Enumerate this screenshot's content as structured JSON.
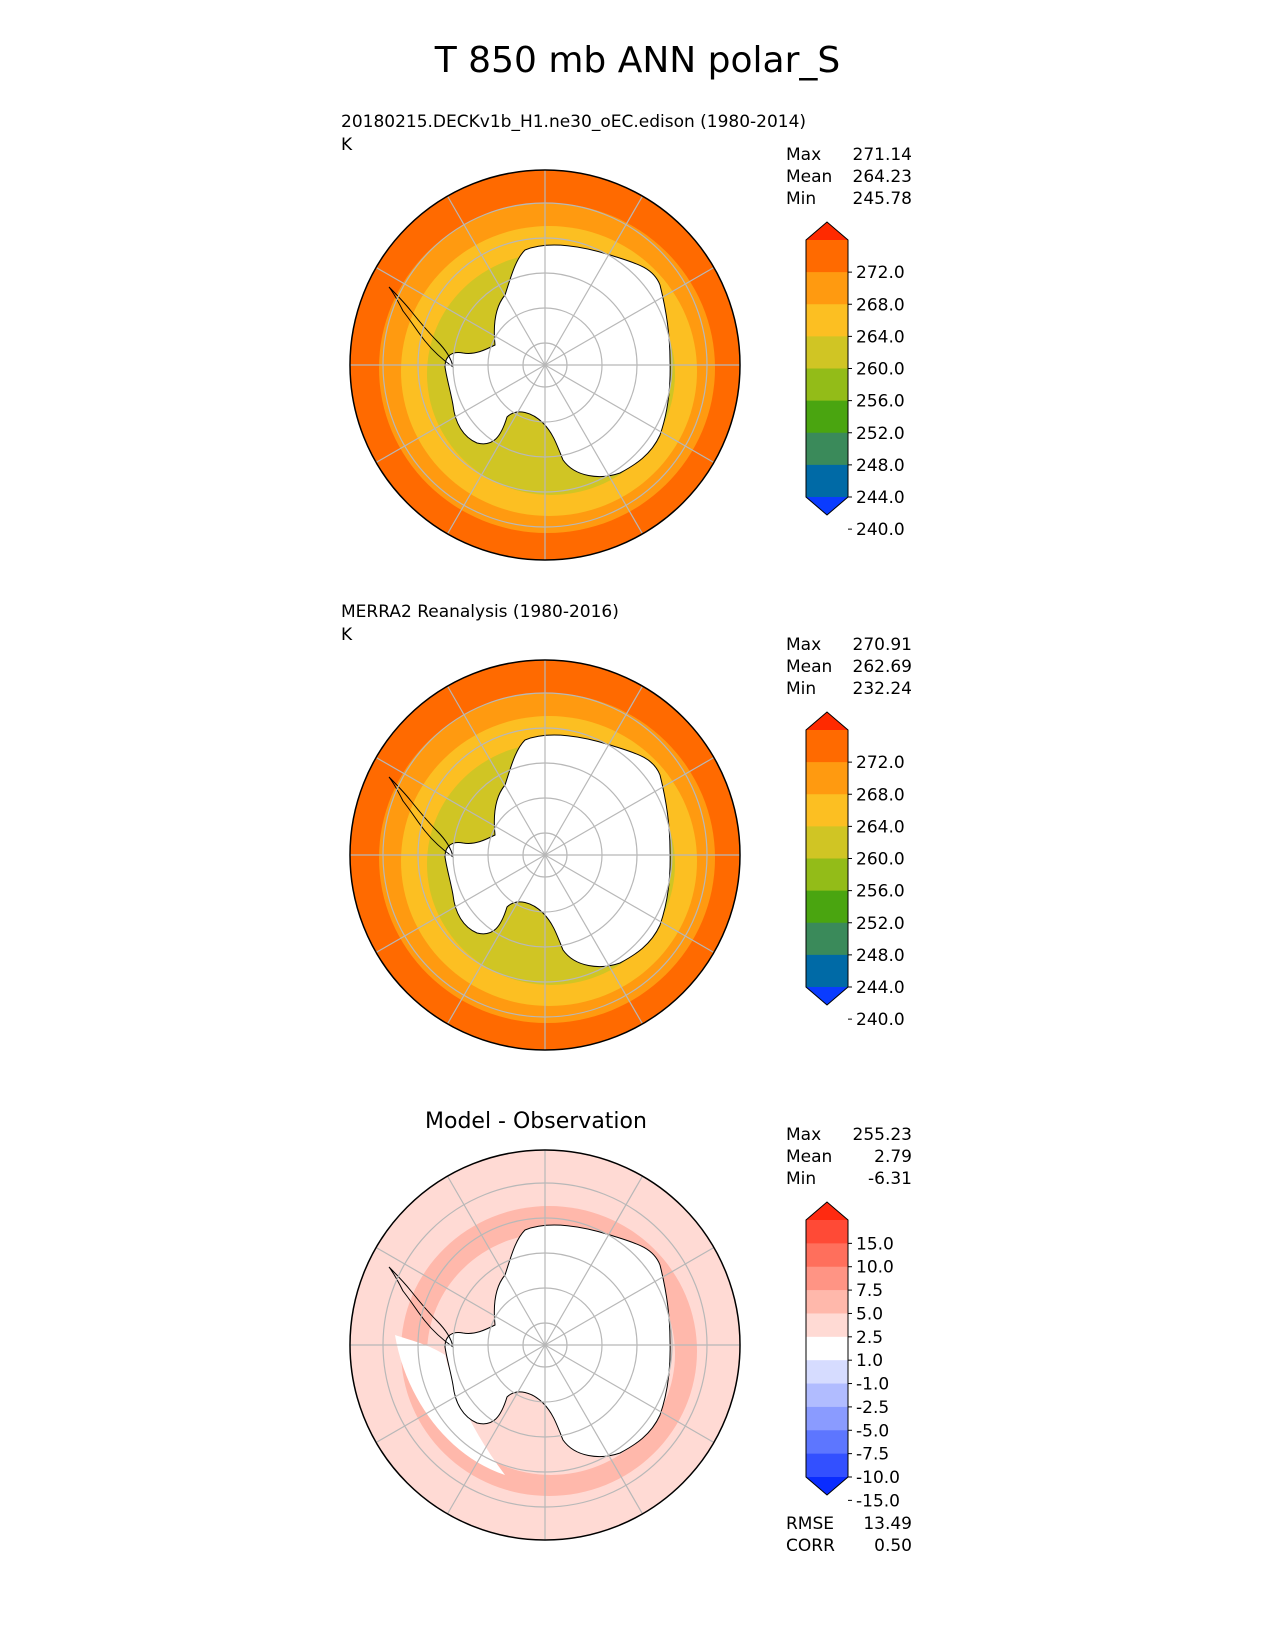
{
  "figure": {
    "title": "T 850 mb ANN polar_S"
  },
  "chart_data": [
    {
      "type": "heatmap",
      "projection": "south polar stereographic",
      "title": "20180215.DECKv1b_H1.ne30_oEC.edison (1980-2014)",
      "units": "K",
      "stats": {
        "Max": "271.14",
        "Mean": "264.23",
        "Min": "245.78"
      },
      "colorbar": {
        "extend": "both",
        "ticks": [
          "272.0",
          "268.0",
          "264.0",
          "260.0",
          "256.0",
          "252.0",
          "248.0",
          "244.0",
          "240.0"
        ],
        "colors": [
          "#ff2a00",
          "#ff6a00",
          "#ff9a10",
          "#fcbf22",
          "#d0c524",
          "#93bc18",
          "#4aa510",
          "#3a8a5a",
          "#006aa6",
          "#0a3cff"
        ]
      },
      "rings": [
        "#ff6a00",
        "#ff9a10",
        "#fcbf22",
        "#d0c524"
      ]
    },
    {
      "type": "heatmap",
      "projection": "south polar stereographic",
      "title": "MERRA2 Reanalysis (1980-2016)",
      "units": "K",
      "stats": {
        "Max": "270.91",
        "Mean": "262.69",
        "Min": "232.24"
      },
      "colorbar": {
        "extend": "both",
        "ticks": [
          "272.0",
          "268.0",
          "264.0",
          "260.0",
          "256.0",
          "252.0",
          "248.0",
          "244.0",
          "240.0"
        ],
        "colors": [
          "#ff2a00",
          "#ff6a00",
          "#ff9a10",
          "#fcbf22",
          "#d0c524",
          "#93bc18",
          "#4aa510",
          "#3a8a5a",
          "#006aa6",
          "#0a3cff"
        ]
      },
      "rings": [
        "#ff6a00",
        "#ff9a10",
        "#fcbf22",
        "#d0c524"
      ]
    },
    {
      "type": "heatmap",
      "projection": "south polar stereographic",
      "title": "Model - Observation",
      "units": "",
      "stats": {
        "Max": "255.23",
        "Mean": "2.79",
        "Min": "-6.31"
      },
      "metrics": {
        "RMSE": "13.49",
        "CORR": "0.50"
      },
      "colorbar": {
        "extend": "both",
        "ticks": [
          "15.0",
          "10.0",
          "7.5",
          "5.0",
          "2.5",
          "1.0",
          "-1.0",
          "-2.5",
          "-5.0",
          "-7.5",
          "-10.0",
          "-15.0"
        ],
        "colors": [
          "#ff2a10",
          "#ff4a36",
          "#ff6f5c",
          "#ff9484",
          "#ffb8ab",
          "#ffdad4",
          "#ffffff",
          "#d6dcff",
          "#b1bcff",
          "#8a9bff",
          "#5d76ff",
          "#3350ff",
          "#0a2cff"
        ]
      },
      "rings": [
        "#ffdad4",
        "#ffdad4",
        "#ffb8ab",
        "#ffdad4"
      ]
    }
  ]
}
